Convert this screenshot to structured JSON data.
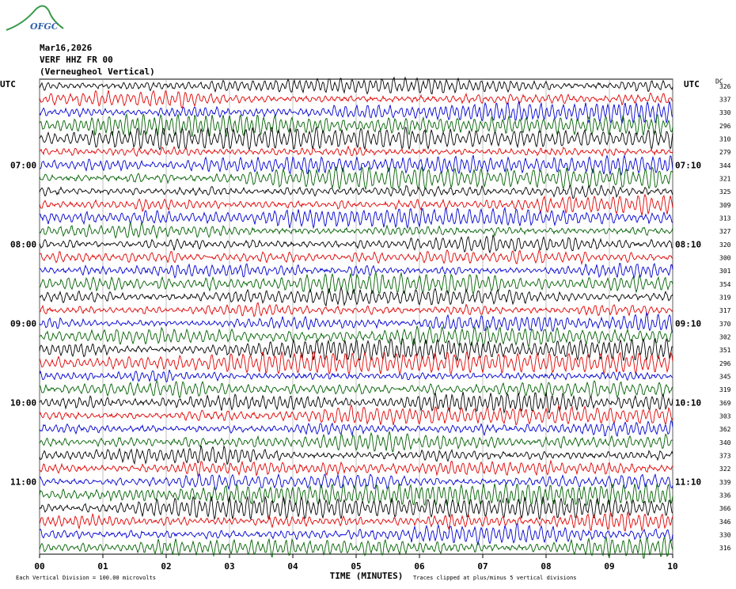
{
  "chart_data": {
    "type": "seismogram",
    "logo": "OFGC",
    "title": "Mar16,2026",
    "subtitle": "VERF HHZ FR 00",
    "station_name": "(Verneugheol Vertical)",
    "left_axis_title": "UTC",
    "right_axis_title": "UTC",
    "dc_title": "DC",
    "x_label": "TIME (MINUTES)",
    "scale_note": "Each Vertical Division =  100.00 microvolts",
    "clip_note": "Traces clipped at plus/minus 5 vertical divisions",
    "xlim": [
      0,
      10
    ],
    "xticks": [
      {
        "value": 0,
        "label": "00"
      },
      {
        "value": 1,
        "label": "01"
      },
      {
        "value": 2,
        "label": "02"
      },
      {
        "value": 3,
        "label": "03"
      },
      {
        "value": 4,
        "label": "04"
      },
      {
        "value": 5,
        "label": "05"
      },
      {
        "value": 6,
        "label": "06"
      },
      {
        "value": 7,
        "label": "07"
      },
      {
        "value": 8,
        "label": "08"
      },
      {
        "value": 9,
        "label": "09"
      },
      10
    ],
    "grid": true,
    "trace_colors": [
      "#000000",
      "#e00000",
      "#0000d0",
      "#006000"
    ],
    "left_labels": [
      null,
      null,
      null,
      null,
      null,
      null,
      "07:00",
      null,
      null,
      null,
      null,
      null,
      "08:00",
      null,
      null,
      null,
      null,
      null,
      "09:00",
      null,
      null,
      null,
      null,
      null,
      "10:00",
      null,
      null,
      null,
      null,
      null,
      "11:00",
      null,
      null,
      null,
      null,
      null
    ],
    "right_labels": [
      null,
      null,
      null,
      null,
      null,
      null,
      "07:10",
      null,
      null,
      null,
      null,
      null,
      "08:10",
      null,
      null,
      null,
      null,
      null,
      "09:10",
      null,
      null,
      null,
      null,
      null,
      "10:10",
      null,
      null,
      null,
      null,
      null,
      "11:10",
      null,
      null,
      null,
      null,
      null
    ],
    "dc_values": [
      326,
      337,
      330,
      296,
      310,
      279,
      344,
      321,
      325,
      309,
      313,
      327,
      320,
      300,
      301,
      354,
      319,
      317,
      370,
      302,
      351,
      296,
      345,
      319,
      369,
      303,
      362,
      340,
      373,
      322,
      339,
      336,
      366,
      346,
      330,
      316
    ]
  }
}
